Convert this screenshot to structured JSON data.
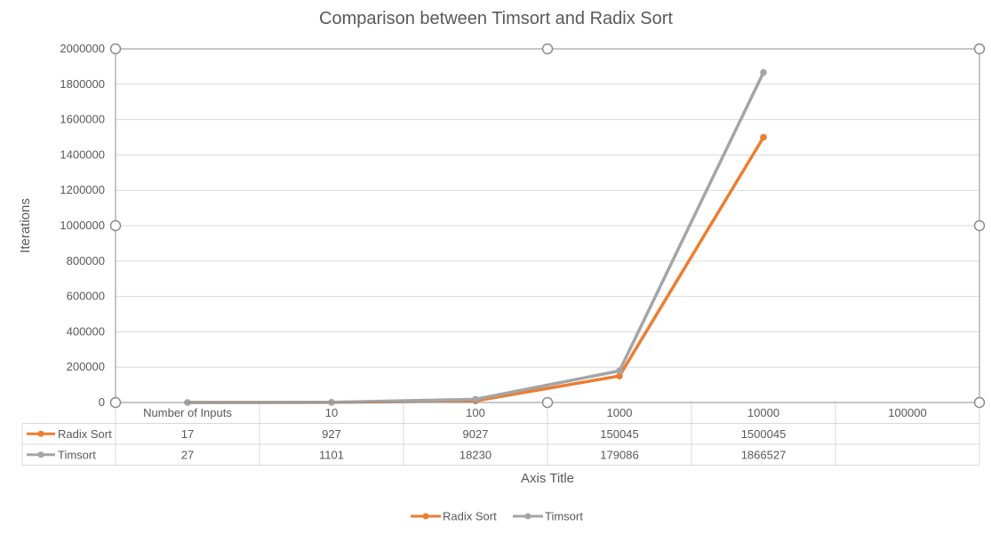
{
  "chart_data": {
    "type": "line",
    "title": "Comparison between Timsort and Radix Sort",
    "ylabel": "Iterations",
    "xlabel": "Axis Title",
    "ylim": [
      0,
      2000000
    ],
    "yticks": [
      "0",
      "200000",
      "400000",
      "600000",
      "800000",
      "1000000",
      "1200000",
      "1400000",
      "1600000",
      "1800000",
      "2000000"
    ],
    "categories": [
      "Number of Inputs",
      "10",
      "100",
      "1000",
      "10000",
      "100000"
    ],
    "series": [
      {
        "name": "Radix Sort",
        "color": "#ED7D31",
        "values": [
          17,
          927,
          9027,
          150045,
          1500045,
          null
        ],
        "labels": [
          "17",
          "927",
          "9027",
          "150045",
          "1500045",
          ""
        ]
      },
      {
        "name": "Timsort",
        "color": "#A5A5A5",
        "values": [
          27,
          1101,
          18230,
          179086,
          1866527,
          null
        ],
        "labels": [
          "27",
          "1101",
          "18230",
          "179086",
          "1866527",
          ""
        ]
      }
    ],
    "grid": true,
    "data_table": true,
    "legend_position": "bottom"
  }
}
